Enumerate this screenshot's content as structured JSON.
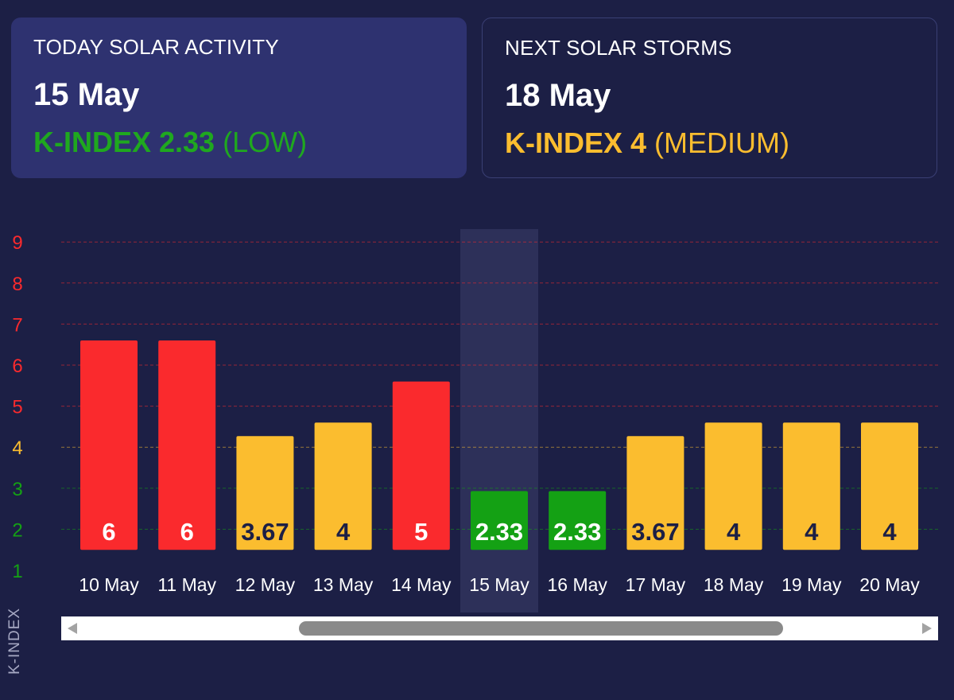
{
  "today": {
    "title": "TODAY SOLAR ACTIVITY",
    "date": "15 May",
    "kindex_label": "K-INDEX 2.33",
    "level": "(LOW)"
  },
  "next": {
    "title": "NEXT SOLAR STORMS",
    "date": "18 May",
    "kindex_label": "K-INDEX 4",
    "level": "(MEDIUM)"
  },
  "colors": {
    "background": "#1c1f45",
    "high": "#fa2a2d",
    "medium": "#fbbd2f",
    "low": "#14a114",
    "highlight": "#2d3059"
  },
  "chart_data": {
    "type": "bar",
    "categories": [
      "10 May",
      "11 May",
      "12 May",
      "13 May",
      "14 May",
      "15 May",
      "16 May",
      "17 May",
      "18 May",
      "19 May",
      "20 May"
    ],
    "values": [
      6,
      6,
      3.67,
      4,
      5,
      2.33,
      2.33,
      3.67,
      4,
      4,
      4
    ],
    "value_labels": [
      "6",
      "6",
      "3.67",
      "4",
      "5",
      "2.33",
      "2.33",
      "3.67",
      "4",
      "4",
      "4"
    ],
    "levels": [
      "high",
      "high",
      "medium",
      "medium",
      "high",
      "low",
      "low",
      "medium",
      "medium",
      "medium",
      "medium"
    ],
    "highlight_category": "15 May",
    "ylabel": "K-INDEX",
    "ylim": [
      1,
      9
    ],
    "yticks": [
      1,
      2,
      3,
      4,
      5,
      6,
      7,
      8,
      9
    ],
    "ytick_levels": [
      "low",
      "low",
      "low",
      "medium",
      "high",
      "high",
      "high",
      "high",
      "high"
    ],
    "grid": true,
    "legend": "none"
  },
  "scrollbar": {
    "left_arrow_icon": "triangle-left-icon",
    "right_arrow_icon": "triangle-right-icon"
  }
}
